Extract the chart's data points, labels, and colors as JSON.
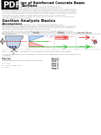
{
  "background_color": "#ffffff",
  "pdf_box_color": "#111111",
  "title_line1": "ign of Reinforced Concrete Beam",
  "title_line2": "Sections",
  "intro_lines": [
    "by XXX X. Xxx Xxxx P.E. >> Retaining Structures P.E. AE >> Article - Structural Analysis",
    "Flexural analysis and design of Reinforced Concrete is a fundamental of concrete structures.",
    "There are many equations and methods but to efficiently understanding the basic analysis and design principles,",
    "the most general and simplest cross sectional shapes often have complex or irregular cross sections. This article",
    "includes the flexural analysis and design calculations using fundamental beam mechanics for the flexure design.",
    "Part 1. Section analysis focuses on the flexural strength calculation considerations of any concrete section. Part 2.",
    "Section design focusing on the flexural design aspects of cross sections will be in a future article.",
    "The symbols and defined in the article, please refer to the American Concrete Institute's ACI 318-19, Building",
    "Code Requirements for Structural Concrete."
  ],
  "section_header": "Section Analysis Basics",
  "assumptions_header": "Assumptions",
  "body_lines": [
    "Figure 1 shows a reinforced concrete beam section whose stress and strain diagrams. Various",
    "assumptions are made to compute the nominal flexural strength of the section. The plane sections remain in the",
    "beam cross section plane is that the strain diagram is linear, according to ACI 318-19 22.2.1.2. The maximum",
    "strain at the extreme concrete compression fiber is assumed to be 0.003.",
    "The concrete stress (ACI 318-21) is the parabolic compressive strength of concrete. A rectangular uniformly",
    "distributed over the concrete stress compression zone of 0.85f'c (ACI 318-19 22.2.2.4.1) that is referred to as the",
    "Whitney stress block."
  ],
  "fig_caption": "Figure 1. Stress, strain, and internal force diagrams of a reinforced concrete beam section.",
  "goal_line1": "To compute the nominal flexural strength of a beam section, equilibrium of forces and compatibility is",
  "goal_line2": "considered, i.e.",
  "eq_col1_label": "Part (a)",
  "eq_col2_label": "Step 1",
  "eq_rows": [
    [
      "The equilibrium tension and compression forces are:",
      "Step 2"
    ],
    [
      "T = A_s f_y",
      "Step 3"
    ],
    [
      "a = A_s f_y / (0.85 f'_c b)",
      "Step 4"
    ],
    [
      "C = M_n",
      "Step 5"
    ]
  ],
  "beam_fill": "#c8d8e8",
  "beam_edge": "#444444",
  "rebar_fill": "#3355aa",
  "rebar_edge": "#222244",
  "strain_comp_fill": "#aaccee",
  "strain_comp_edge": "#2255aa",
  "strain_tens_fill": "#ffaaaa",
  "strain_tens_edge": "#cc2222",
  "stress_fill": "#ffaaaa",
  "stress_edge": "#cc2222",
  "na_color": "#cc0000",
  "green_color": "#00aa00",
  "blue_label": "#0000cc",
  "red_label": "#cc0000",
  "header_line_color": "#aaaaaa",
  "neutral_axis_label": "Neutral\naxis"
}
